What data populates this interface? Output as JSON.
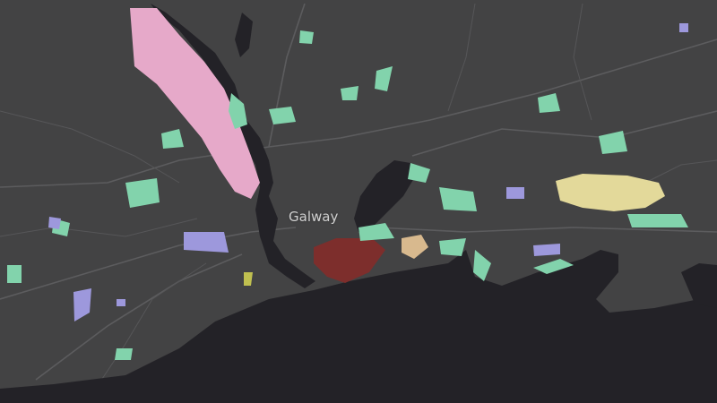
{
  "map": {
    "place_label": "Galway",
    "colors": {
      "land": "#434344",
      "water": "#232227",
      "residential": "#e6a9c9",
      "green_space": "#82d3ac",
      "institutional": "#9d98dc",
      "commercial": "#e3d99a",
      "industrial": "#7d2e2c",
      "retail": "#d8b98e"
    }
  }
}
